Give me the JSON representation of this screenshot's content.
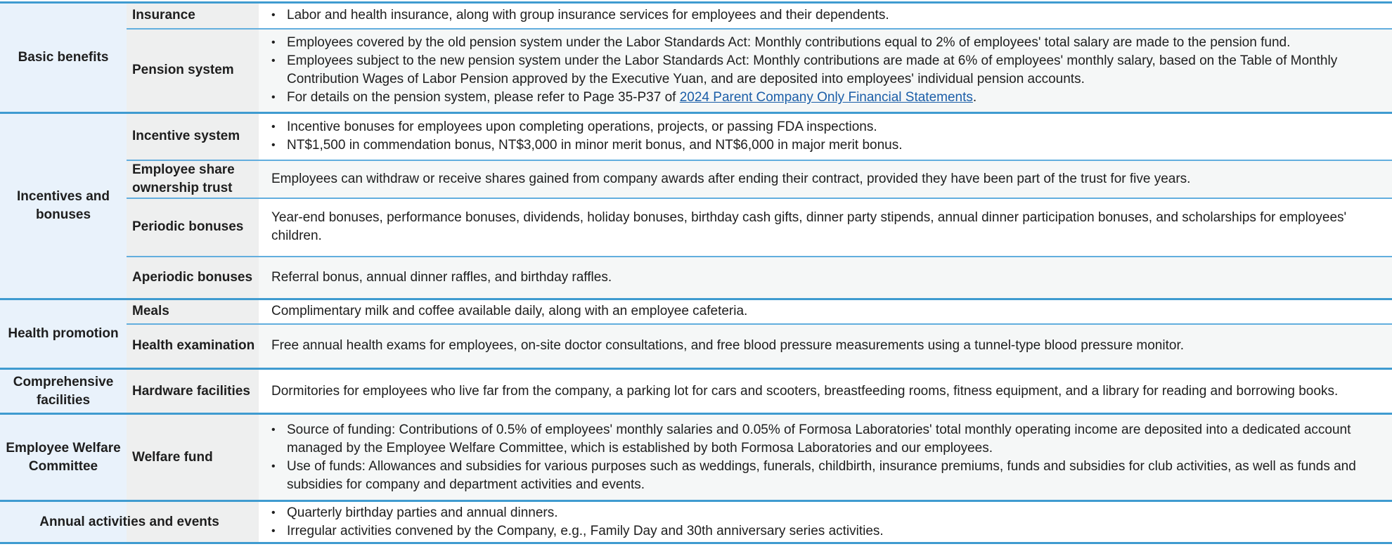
{
  "groups": {
    "basic": "Basic benefits",
    "incentives": "Incentives and bonuses",
    "health": "Health promotion",
    "facilities": "Comprehensive facilities",
    "welfare": "Employee Welfare Committee",
    "annual": "Annual activities and events"
  },
  "rows": {
    "insurance": {
      "label": "Insurance",
      "items": [
        "Labor and health insurance, along with group insurance services for employees and their dependents."
      ]
    },
    "pension": {
      "label": "Pension system",
      "items": [
        "Employees covered by the old pension system under the Labor Standards Act: Monthly contributions equal to 2% of employees' total salary are made to the pension fund.",
        "Employees subject to the new pension system under the Labor Standards Act: Monthly contributions are made at 6% of employees' monthly salary, based on the Table of Monthly Contribution Wages of Labor Pension approved by the Executive Yuan, and are deposited into employees' individual pension accounts."
      ],
      "details_prefix": "For details on the pension system, please refer to Page 35-P37 of ",
      "details_link": "2024 Parent Company Only Financial Statements",
      "details_suffix": "."
    },
    "incentive": {
      "label": "Incentive system",
      "items": [
        "Incentive bonuses for employees upon completing operations, projects, or passing FDA inspections.",
        "NT$1,500 in commendation bonus, NT$3,000 in minor merit bonus, and NT$6,000 in major merit bonus."
      ]
    },
    "esot": {
      "label": "Employee share ownership trust",
      "text": "Employees can withdraw or receive shares gained from company awards after ending their contract, provided they have been part of the trust for five years."
    },
    "periodic": {
      "label": "Periodic bonuses",
      "text": "Year-end bonuses, performance bonuses, dividends, holiday bonuses, birthday cash gifts, dinner party stipends, annual dinner participation bonuses, and scholarships for employees' children."
    },
    "aperiodic": {
      "label": "Aperiodic bonuses",
      "text": "Referral bonus, annual dinner raffles, and birthday raffles."
    },
    "meals": {
      "label": "Meals",
      "text": "Complimentary milk and coffee available daily, along with an employee cafeteria."
    },
    "exam": {
      "label": "Health examination",
      "text": "Free annual health exams for employees, on-site doctor consultations, and free blood pressure measurements using a tunnel-type blood pressure monitor."
    },
    "hardware": {
      "label": "Hardware facilities",
      "text": "Dormitories for employees who live far from the company, a parking lot for cars and scooters, breastfeeding rooms, fitness equipment, and a library for reading and borrowing books."
    },
    "fund": {
      "label": "Welfare fund",
      "items": [
        "Source of funding: Contributions of 0.5% of employees' monthly salaries and 0.05% of Formosa Laboratories' total monthly operating income are deposited into a dedicated account managed by the Employee Welfare Committee, which is established by both Formosa Laboratories and our employees.",
        "Use of funds: Allowances and subsidies for various purposes such as weddings, funerals, childbirth, insurance premiums, funds and subsidies for club activities, as well as funds and subsidies for company and department activities and events."
      ]
    },
    "annual": {
      "items": [
        "Quarterly birthday parties and annual dinners.",
        "Irregular activities convened by the Company, e.g., Family Day and 30th anniversary series activities."
      ]
    }
  },
  "colors": {
    "border": "#3f9bd0",
    "group_bg": "#e9f2fb",
    "label_bg": "#eeefef",
    "link": "#1b5ea8"
  }
}
